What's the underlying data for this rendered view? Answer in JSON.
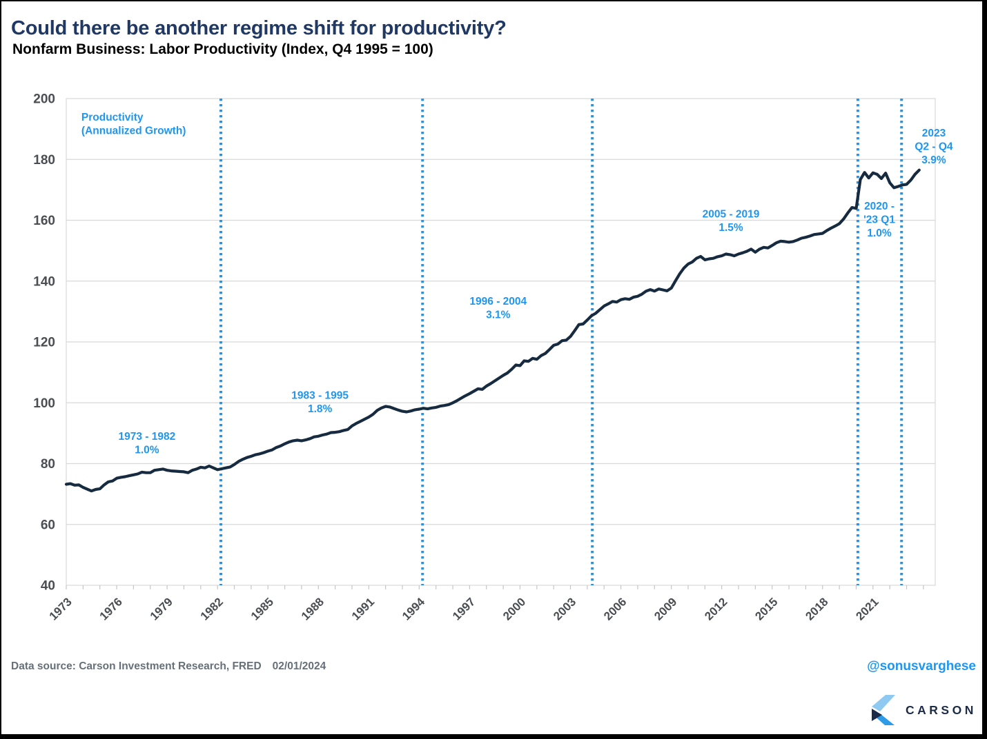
{
  "page": {
    "title": "Could there be another regime shift for productivity?",
    "subtitle": "Nonfarm Business: Labor Productivity (Index, Q4 1995 = 100)",
    "footer": {
      "source": "Data source: Carson Investment Research, FRED",
      "date": "02/01/2024",
      "handle": "@sonusvarghese",
      "logo_text": "CARSON"
    }
  },
  "colors": {
    "title_navy": "#1f3864",
    "accent_blue": "#1f96f0",
    "line_navy": "#162a40",
    "grid": "#d8d8d8",
    "tick": "#c6c6c6",
    "axis_text": "#4a4d52",
    "footer_gray": "#667079",
    "logo_navy": "#1b2b49",
    "logo_light_blue": "#8ec9f2",
    "logo_mid_blue": "#2e9be8"
  },
  "chart_data": {
    "type": "line",
    "title": "Nonfarm Business: Labor Productivity (Index, Q4 1995 = 100)",
    "x_start": 1973,
    "x_step": 0.25,
    "x_axis": {
      "minor_tick_start": 1973,
      "minor_tick_end": 2024,
      "minor_tick_step": 1,
      "labels": [
        "1973",
        "1976",
        "1979",
        "1982",
        "1985",
        "1988",
        "1991",
        "1994",
        "1997",
        "2000",
        "2003",
        "2006",
        "2009",
        "2012",
        "2015",
        "2018",
        "2021"
      ],
      "label_step_years": 3,
      "label_angle": -45
    },
    "y_axis": {
      "min": 40,
      "max": 200,
      "step": 20,
      "tick_labels": [
        "200",
        "180",
        "160",
        "140",
        "120",
        "100",
        "80",
        "60",
        "40"
      ]
    },
    "grid": true,
    "legend": {
      "lines": [
        "Productivity",
        "(Annualized Growth)"
      ],
      "x_year": 1973.9,
      "y_value": 191.8,
      "align": "left"
    },
    "regimes": [
      {
        "period": "1973 - 1982",
        "growth": "1.0%",
        "lines": [
          "1973 - 1982",
          "1.0%"
        ],
        "x_year": 1977.8,
        "y_value": 86.9
      },
      {
        "period": "1983 - 1995",
        "growth": "1.8%",
        "lines": [
          "1983 - 1995",
          "1.8%"
        ],
        "x_year": 1988.1,
        "y_value": 100.3
      },
      {
        "period": "1996 - 2004",
        "growth": "3.1%",
        "lines": [
          "1996 - 2004",
          "3.1%"
        ],
        "x_year": 1998.7,
        "y_value": 131.3
      },
      {
        "period": "2005 - 2019",
        "growth": "1.5%",
        "lines": [
          "2005 - 2019",
          "1.5%"
        ],
        "x_year": 2012.55,
        "y_value": 159.9
      },
      {
        "period": "2020 - '23 Q1",
        "growth": "1.0%",
        "lines": [
          "2020 -",
          "'23 Q1",
          "1.0%"
        ],
        "x_year": 2021.38,
        "y_value": 160.3
      },
      {
        "period": "2023 Q2 - Q4",
        "growth": "3.9%",
        "lines": [
          "2023",
          "Q2 - Q4",
          "3.9%"
        ],
        "x_year": 2024.62,
        "y_value": 184.4
      }
    ],
    "dividers": [
      {
        "boundary": "1983",
        "x_year": 1982.2
      },
      {
        "boundary": "1996",
        "x_year": 1994.2
      },
      {
        "boundary": "2005",
        "x_year": 2004.3
      },
      {
        "boundary": "2020",
        "x_year": 2020.1
      },
      {
        "boundary": "2023 Q2",
        "x_year": 2022.7
      }
    ],
    "series": [
      {
        "name": "Labor Productivity",
        "values": [
          73.2,
          73.4,
          72.9,
          73.0,
          72.2,
          71.6,
          71.0,
          71.5,
          71.7,
          73.0,
          74.0,
          74.3,
          75.2,
          75.5,
          75.7,
          76.0,
          76.3,
          76.6,
          77.2,
          77.0,
          77.0,
          77.8,
          78.0,
          78.2,
          77.8,
          77.6,
          77.5,
          77.4,
          77.3,
          77.0,
          77.8,
          78.2,
          78.8,
          78.6,
          79.2,
          78.6,
          78.0,
          78.3,
          78.6,
          78.9,
          79.7,
          80.7,
          81.4,
          82.0,
          82.4,
          82.9,
          83.2,
          83.6,
          84.1,
          84.5,
          85.3,
          85.8,
          86.5,
          87.1,
          87.5,
          87.7,
          87.5,
          87.8,
          88.2,
          88.8,
          89.0,
          89.4,
          89.7,
          90.2,
          90.3,
          90.5,
          90.9,
          91.2,
          92.4,
          93.2,
          93.9,
          94.6,
          95.3,
          96.2,
          97.5,
          98.3,
          98.8,
          98.6,
          98.1,
          97.6,
          97.2,
          97.0,
          97.3,
          97.7,
          97.9,
          98.2,
          98.0,
          98.3,
          98.5,
          98.9,
          99.1,
          99.4,
          100.0,
          100.7,
          101.5,
          102.3,
          103.0,
          103.8,
          104.6,
          104.4,
          105.5,
          106.3,
          107.2,
          108.1,
          109.0,
          109.8,
          111.0,
          112.4,
          112.2,
          113.8,
          113.6,
          114.6,
          114.3,
          115.5,
          116.2,
          117.5,
          118.9,
          119.3,
          120.4,
          120.6,
          121.8,
          123.7,
          125.7,
          125.9,
          127.2,
          128.6,
          129.4,
          130.6,
          131.8,
          132.5,
          133.3,
          133.1,
          133.9,
          134.2,
          134.0,
          134.7,
          135.0,
          135.7,
          136.7,
          137.2,
          136.7,
          137.4,
          137.1,
          136.8,
          137.7,
          140.1,
          142.4,
          144.3,
          145.6,
          146.3,
          147.5,
          148.1,
          147.0,
          147.3,
          147.5,
          148.0,
          148.3,
          148.9,
          148.7,
          148.3,
          148.9,
          149.3,
          149.8,
          150.5,
          149.5,
          150.5,
          151.1,
          150.9,
          151.7,
          152.6,
          153.1,
          153.0,
          152.8,
          153.0,
          153.5,
          154.1,
          154.4,
          154.8,
          155.3,
          155.5,
          155.7,
          156.6,
          157.4,
          158.1,
          158.9,
          160.4,
          162.4,
          164.2,
          163.9,
          173.4,
          175.7,
          173.9,
          175.6,
          175.1,
          173.7,
          175.5,
          172.3,
          170.7,
          171.1,
          171.6,
          171.8,
          173.2,
          175.1,
          176.5
        ]
      }
    ]
  }
}
